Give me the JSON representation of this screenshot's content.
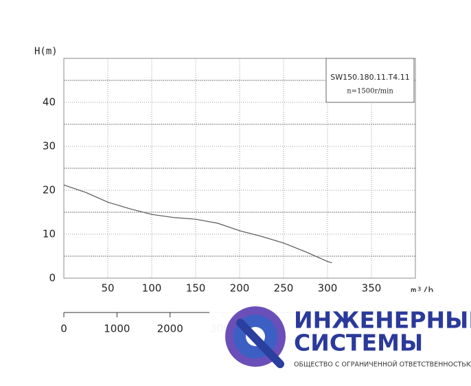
{
  "chart_data": {
    "type": "line",
    "y_label": "H(m)",
    "x_label": "m³/h",
    "model": "SW150.180.11.T4.11",
    "speed": "n=1500r/min",
    "x": [
      0,
      25,
      50,
      75,
      100,
      125,
      150,
      175,
      200,
      225,
      250,
      275,
      300,
      305
    ],
    "series": [
      {
        "color": "#555555",
        "values": [
          21.2,
          19.5,
          17.3,
          15.8,
          14.5,
          13.8,
          13.4,
          12.5,
          10.8,
          9.5,
          8.0,
          6.0,
          3.8,
          3.5
        ]
      }
    ],
    "xlim": [
      0,
      400
    ],
    "xticks": [
      50,
      100,
      150,
      200,
      250,
      300,
      350
    ],
    "ylim": [
      0,
      50
    ],
    "yticks": [
      0,
      10,
      20,
      30,
      40
    ],
    "y_minor_grid": [
      5,
      15,
      25,
      35,
      45
    ],
    "x2lim": [
      0,
      6620
    ],
    "x2ticks": [
      0,
      1000,
      2000,
      3000
    ],
    "grid": true
  },
  "logo": {
    "line1": "ИНЖЕНЕРНЫЕ",
    "line2": "СИСТЕМЫ",
    "line3": "ОБЩЕСТВО С ОГРАНИЧЕННОЙ ОТВЕТСТВЕННОСТЬЮ"
  }
}
